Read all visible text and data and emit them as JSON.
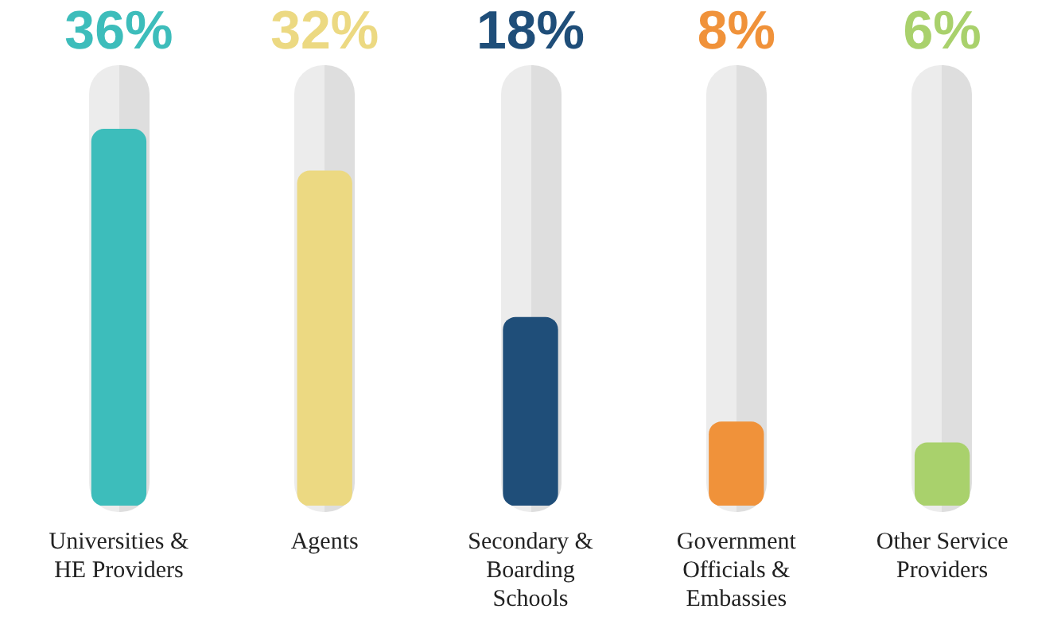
{
  "chart_data": {
    "type": "bar",
    "categories": [
      "Universities & HE Providers",
      "Agents",
      "Secondary & Boarding Schools",
      "Government Officials & Embassies",
      "Other Service Providers"
    ],
    "values": [
      36,
      32,
      18,
      8,
      6
    ],
    "colors": [
      "#3dbdbb",
      "#ecd982",
      "#1f4e79",
      "#f0923a",
      "#a9d16c"
    ],
    "value_labels": [
      "36%",
      "32%",
      "18%",
      "8%",
      "6%"
    ],
    "grid": false,
    "legend": false,
    "tick_labels": "x"
  }
}
